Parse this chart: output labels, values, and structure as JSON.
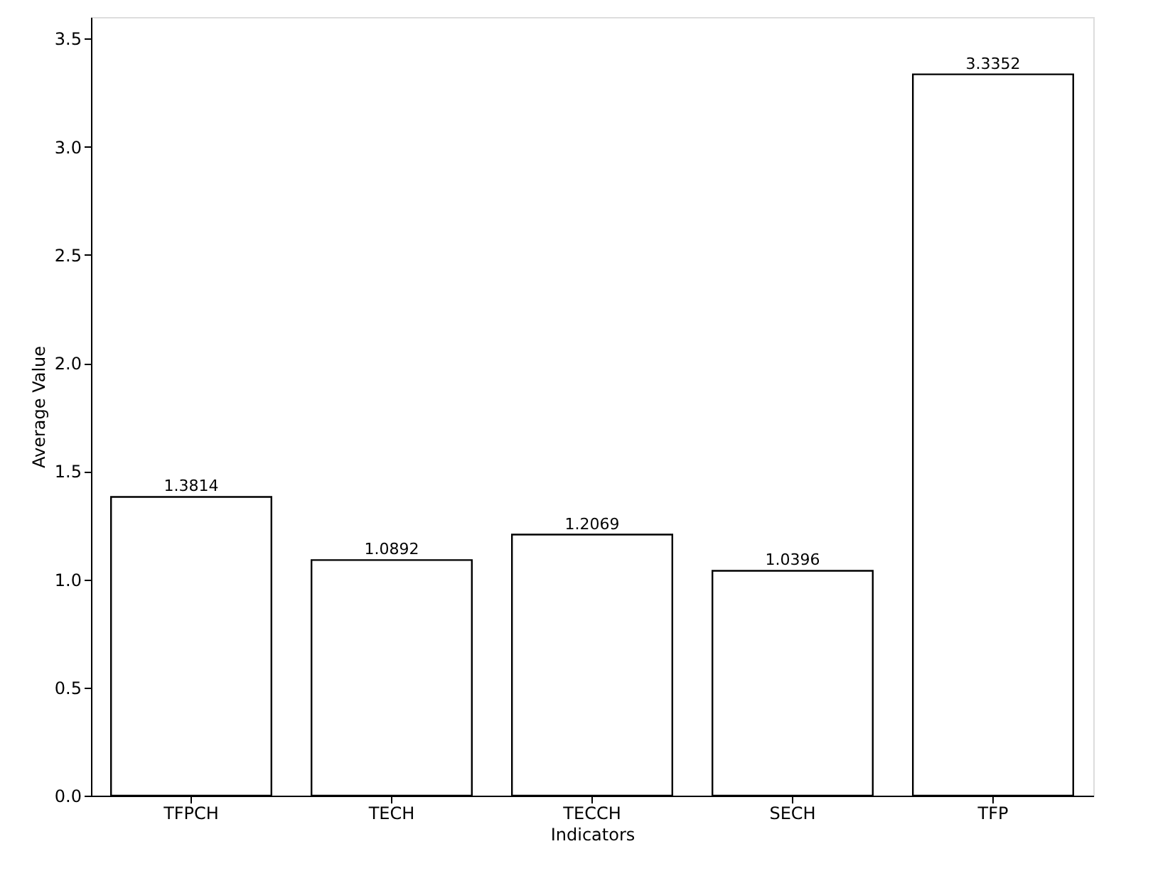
{
  "chart_data": {
    "type": "bar",
    "xlabel": "Indicators",
    "ylabel": "Average Value",
    "categories": [
      "TFPCH",
      "TECH",
      "TECCH",
      "SECH",
      "TFP"
    ],
    "values": [
      1.3814,
      1.0892,
      1.2069,
      1.0396,
      3.3352
    ],
    "color": "#ffffff",
    "ylim": [
      0,
      3.6
    ],
    "yticks": [
      {
        "value": 0,
        "label": "0.0"
      },
      0.5,
      {
        "value": 1,
        "label": "1.0"
      },
      1.5,
      {
        "value": 2,
        "label": "2.0"
      },
      2.5,
      {
        "value": 3,
        "label": "3.0"
      },
      3.5
    ],
    "data_labels": true,
    "grid": false
  }
}
